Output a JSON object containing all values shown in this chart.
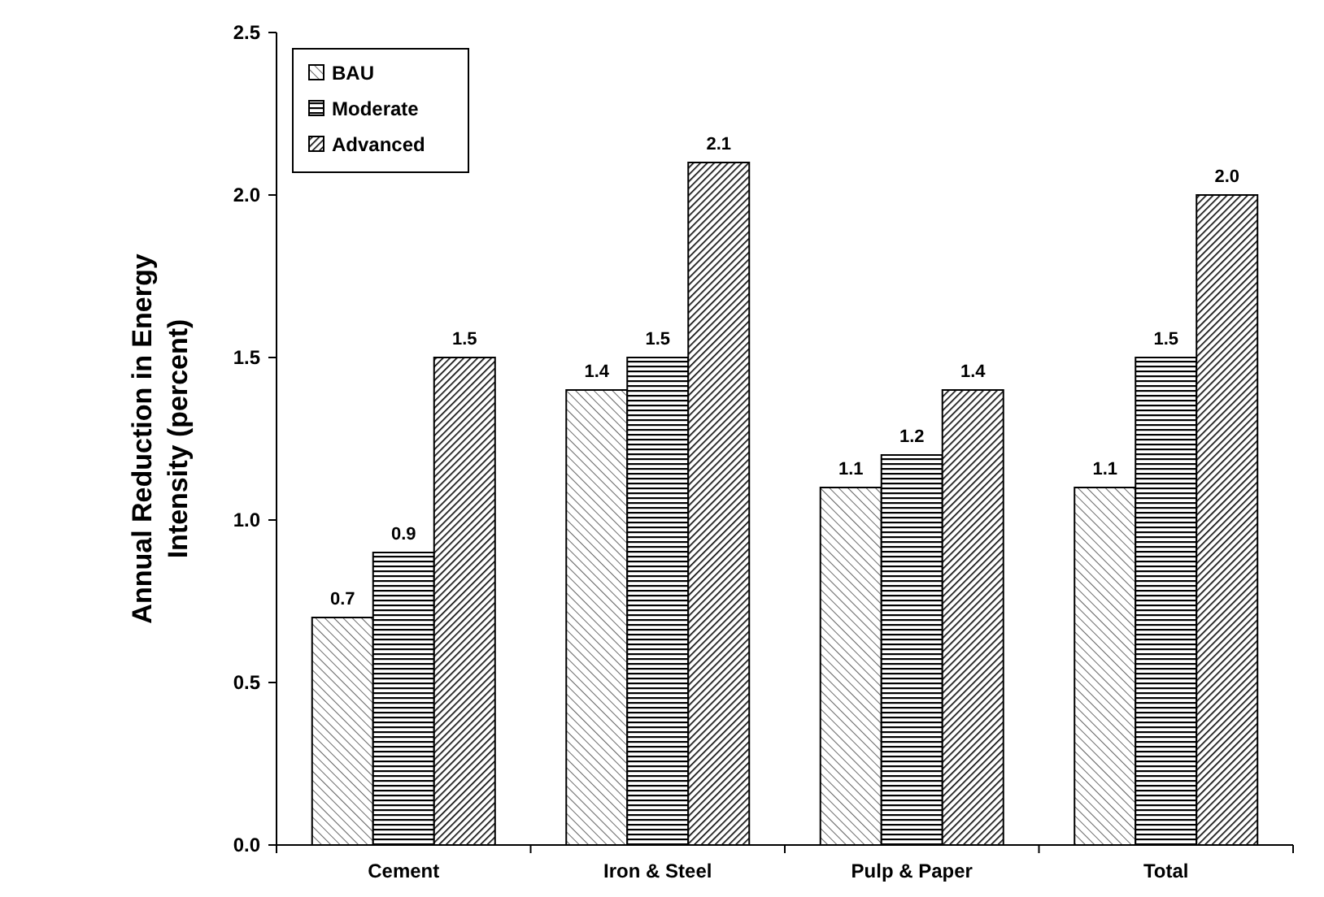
{
  "chart_data": {
    "type": "bar",
    "ylabel": "Annual Reduction in Energy Intensity (percent)",
    "categories": [
      "Cement",
      "Iron & Steel",
      "Pulp & Paper",
      "Total"
    ],
    "series": [
      {
        "name": "BAU",
        "color": "#000000",
        "values": [
          0.7,
          1.4,
          1.1,
          1.1
        ],
        "value_labels": [
          "0.7",
          "1.4",
          "1.1",
          "1.1"
        ]
      },
      {
        "name": "Moderate",
        "color": "#000000",
        "values": [
          0.9,
          1.5,
          1.2,
          1.5
        ],
        "value_labels": [
          "0.9",
          "1.5",
          "1.2",
          "1.5"
        ]
      },
      {
        "name": "Advanced",
        "color": "#000000",
        "values": [
          1.5,
          2.1,
          1.4,
          2.0
        ],
        "value_labels": [
          "1.5",
          "2.1",
          "1.4",
          "2.0"
        ]
      }
    ],
    "ylim": [
      0,
      2.5
    ],
    "yticks": [
      {
        "value": 0,
        "label": "0.0"
      },
      {
        "value": 0.5,
        "label": "0.5"
      },
      {
        "value": 1,
        "label": "1.0"
      },
      {
        "value": 1.5,
        "label": "1.5"
      },
      {
        "value": 2,
        "label": "2.0"
      },
      {
        "value": 2.5,
        "label": "2.5"
      }
    ],
    "grid": false,
    "legend": "top left"
  }
}
